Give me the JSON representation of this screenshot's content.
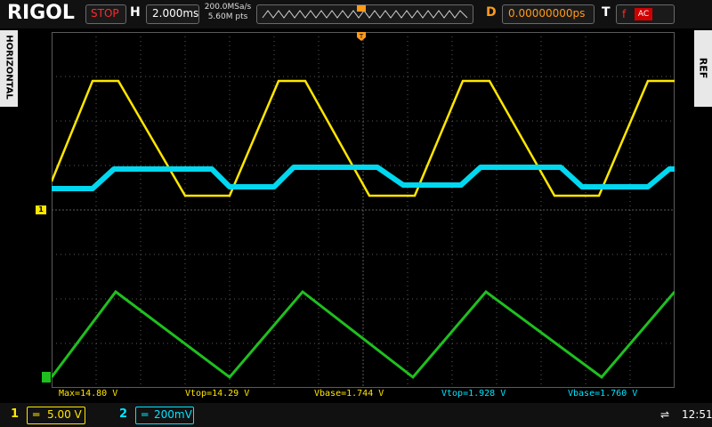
{
  "top": {
    "brand": "RIGOL",
    "run_state": "STOP",
    "horizontal_label": "H",
    "timebase": "2.000ms",
    "sample_rate": "200.0MSa/s",
    "memory_depth": "5.60M pts",
    "delay_label": "D",
    "delay_value": "0.00000000ps",
    "trigger_label": "T",
    "trigger_coupling": "AC",
    "trigger_marker": "T",
    "trigger_edge": "f"
  },
  "side": {
    "left_tab": "HORIZONTAL",
    "right_tab": "REF"
  },
  "channel_marker": "1",
  "measurements": [
    {
      "text": "Max=14.80 V",
      "color": "#ffe600"
    },
    {
      "text": "Vtop=14.29 V",
      "color": "#ffe600"
    },
    {
      "text": "Vbase=1.744 V",
      "color": "#ffe600"
    },
    {
      "text": "Vtop=1.928 V",
      "color": "#00e5ff"
    },
    {
      "text": "Vbase=1.760 V",
      "color": "#00e5ff"
    }
  ],
  "bottom": {
    "ch1_number": "1",
    "ch1_scale": "5.00 V",
    "ch2_number": "2",
    "ch2_scale": "200mV",
    "clock": "12:51"
  },
  "colors": {
    "ch1": "#ffe600",
    "ch2": "#00e5ff",
    "math": "#1fbf1f",
    "grid": "#5a5a5a",
    "trigger": "#ff9a1a"
  }
}
